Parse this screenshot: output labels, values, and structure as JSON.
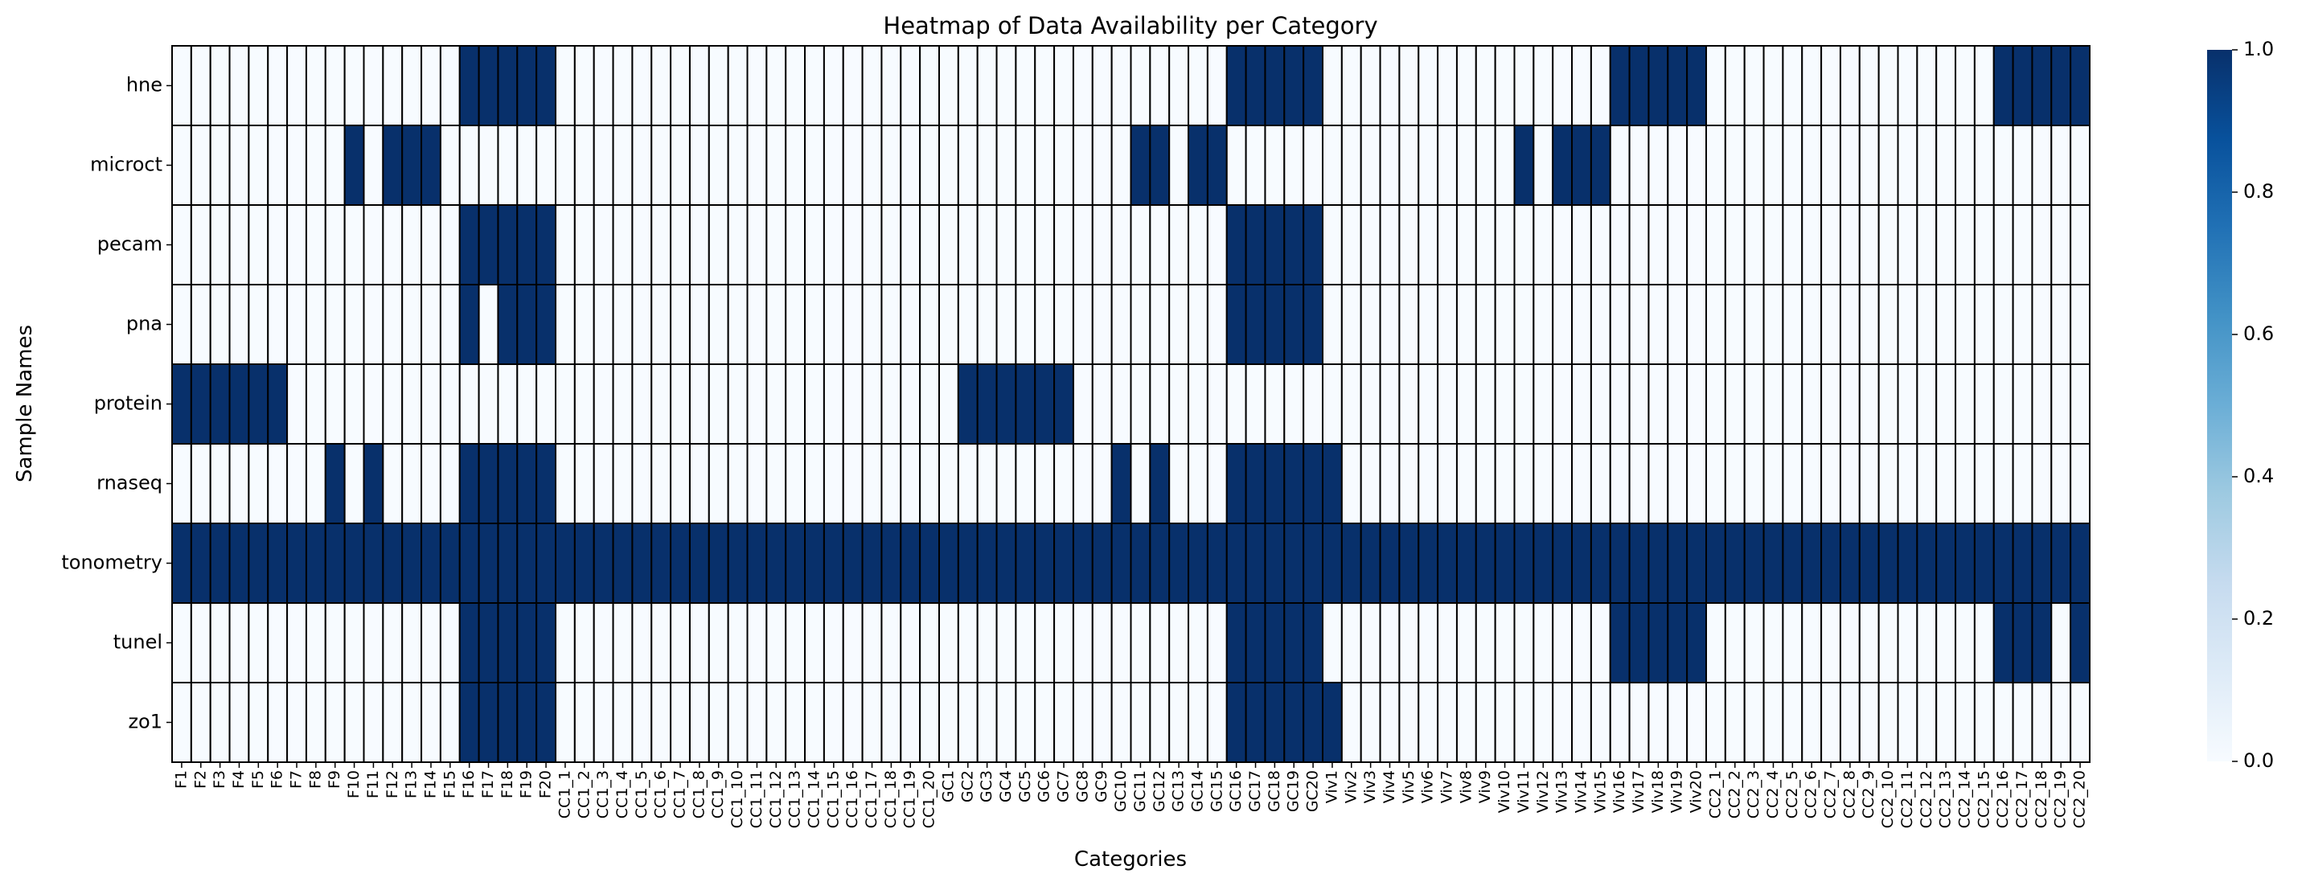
{
  "chart_data": {
    "type": "heatmap",
    "title": "Heatmap of Data Availability per Category",
    "xlabel": "Categories",
    "ylabel": "Sample Names",
    "colormap": "Blues",
    "colorbar_range": [
      0,
      1
    ],
    "colorbar_ticks": [
      "0.0",
      "0.2",
      "0.4",
      "0.6",
      "0.8",
      "1.0"
    ],
    "colors": {
      "low": "#f7fbff",
      "high": "#08306b",
      "grid": "#000000"
    },
    "rows": [
      "hne",
      "microct",
      "pecam",
      "pna",
      "protein",
      "rnaseq",
      "tonometry",
      "tunel",
      "zo1"
    ],
    "columns": [
      "F1",
      "F2",
      "F3",
      "F4",
      "F5",
      "F6",
      "F7",
      "F8",
      "F9",
      "F10",
      "F11",
      "F12",
      "F13",
      "F14",
      "F15",
      "F16",
      "F17",
      "F18",
      "F19",
      "F20",
      "CC1_1",
      "CC1_2",
      "CC1_3",
      "CC1_4",
      "CC1_5",
      "CC1_6",
      "CC1_7",
      "CC1_8",
      "CC1_9",
      "CC1_10",
      "CC1_11",
      "CC1_12",
      "CC1_13",
      "CC1_14",
      "CC1_15",
      "CC1_16",
      "CC1_17",
      "CC1_18",
      "CC1_19",
      "CC1_20",
      "GC1",
      "GC2",
      "GC3",
      "GC4",
      "GC5",
      "GC6",
      "GC7",
      "GC8",
      "GC9",
      "GC10",
      "GC11",
      "GC12",
      "GC13",
      "GC14",
      "GC15",
      "GC16",
      "GC17",
      "GC18",
      "GC19",
      "GC20",
      "Viv1",
      "Viv2",
      "Viv3",
      "Viv4",
      "Viv5",
      "Viv6",
      "Viv7",
      "Viv8",
      "Viv9",
      "Viv10",
      "Viv11",
      "Viv12",
      "Viv13",
      "Viv14",
      "Viv15",
      "Viv16",
      "Viv17",
      "Viv18",
      "Viv19",
      "Viv20",
      "CC2_1",
      "CC2_2",
      "CC2_3",
      "CC2_4",
      "CC2_5",
      "CC2_6",
      "CC2_7",
      "CC2_8",
      "CC2_9",
      "CC2_10",
      "CC2_11",
      "CC2_12",
      "CC2_13",
      "CC2_14",
      "CC2_15",
      "CC2_16",
      "CC2_17",
      "CC2_18",
      "CC2_19",
      "CC2_20"
    ],
    "values": [
      [
        0,
        0,
        0,
        0,
        0,
        0,
        0,
        0,
        0,
        0,
        0,
        0,
        0,
        0,
        0,
        1,
        1,
        1,
        1,
        1,
        0,
        0,
        0,
        0,
        0,
        0,
        0,
        0,
        0,
        0,
        0,
        0,
        0,
        0,
        0,
        0,
        0,
        0,
        0,
        0,
        0,
        0,
        0,
        0,
        0,
        0,
        0,
        0,
        0,
        0,
        0,
        0,
        0,
        0,
        0,
        1,
        1,
        1,
        1,
        1,
        0,
        0,
        0,
        0,
        0,
        0,
        0,
        0,
        0,
        0,
        0,
        0,
        0,
        0,
        0,
        1,
        1,
        1,
        1,
        1,
        0,
        0,
        0,
        0,
        0,
        0,
        0,
        0,
        0,
        0,
        0,
        0,
        0,
        0,
        0,
        1,
        1,
        1,
        1,
        1
      ],
      [
        0,
        0,
        0,
        0,
        0,
        0,
        0,
        0,
        0,
        1,
        0,
        1,
        1,
        1,
        0,
        0,
        0,
        0,
        0,
        0,
        0,
        0,
        0,
        0,
        0,
        0,
        0,
        0,
        0,
        0,
        0,
        0,
        0,
        0,
        0,
        0,
        0,
        0,
        0,
        0,
        0,
        0,
        0,
        0,
        0,
        0,
        0,
        0,
        0,
        0,
        1,
        1,
        0,
        1,
        1,
        0,
        0,
        0,
        0,
        0,
        0,
        0,
        0,
        0,
        0,
        0,
        0,
        0,
        0,
        0,
        1,
        0,
        1,
        1,
        1,
        0,
        0,
        0,
        0,
        0,
        0,
        0,
        0,
        0,
        0,
        0,
        0,
        0,
        0,
        0,
        0,
        0,
        0,
        0,
        0,
        0,
        0,
        0,
        0,
        0
      ],
      [
        0,
        0,
        0,
        0,
        0,
        0,
        0,
        0,
        0,
        0,
        0,
        0,
        0,
        0,
        0,
        1,
        1,
        1,
        1,
        1,
        0,
        0,
        0,
        0,
        0,
        0,
        0,
        0,
        0,
        0,
        0,
        0,
        0,
        0,
        0,
        0,
        0,
        0,
        0,
        0,
        0,
        0,
        0,
        0,
        0,
        0,
        0,
        0,
        0,
        0,
        0,
        0,
        0,
        0,
        0,
        1,
        1,
        1,
        1,
        1,
        0,
        0,
        0,
        0,
        0,
        0,
        0,
        0,
        0,
        0,
        0,
        0,
        0,
        0,
        0,
        0,
        0,
        0,
        0,
        0,
        0,
        0,
        0,
        0,
        0,
        0,
        0,
        0,
        0,
        0,
        0,
        0,
        0,
        0,
        0,
        0,
        0,
        0,
        0,
        0
      ],
      [
        0,
        0,
        0,
        0,
        0,
        0,
        0,
        0,
        0,
        0,
        0,
        0,
        0,
        0,
        0,
        1,
        0,
        1,
        1,
        1,
        0,
        0,
        0,
        0,
        0,
        0,
        0,
        0,
        0,
        0,
        0,
        0,
        0,
        0,
        0,
        0,
        0,
        0,
        0,
        0,
        0,
        0,
        0,
        0,
        0,
        0,
        0,
        0,
        0,
        0,
        0,
        0,
        0,
        0,
        0,
        1,
        1,
        1,
        1,
        1,
        0,
        0,
        0,
        0,
        0,
        0,
        0,
        0,
        0,
        0,
        0,
        0,
        0,
        0,
        0,
        0,
        0,
        0,
        0,
        0,
        0,
        0,
        0,
        0,
        0,
        0,
        0,
        0,
        0,
        0,
        0,
        0,
        0,
        0,
        0,
        0,
        0,
        0,
        0,
        0
      ],
      [
        1,
        1,
        1,
        1,
        1,
        1,
        0,
        0,
        0,
        0,
        0,
        0,
        0,
        0,
        0,
        0,
        0,
        0,
        0,
        0,
        0,
        0,
        0,
        0,
        0,
        0,
        0,
        0,
        0,
        0,
        0,
        0,
        0,
        0,
        0,
        0,
        0,
        0,
        0,
        0,
        0,
        1,
        1,
        1,
        1,
        1,
        1,
        0,
        0,
        0,
        0,
        0,
        0,
        0,
        0,
        0,
        0,
        0,
        0,
        0,
        0,
        0,
        0,
        0,
        0,
        0,
        0,
        0,
        0,
        0,
        0,
        0,
        0,
        0,
        0,
        0,
        0,
        0,
        0,
        0,
        0,
        0,
        0,
        0,
        0,
        0,
        0,
        0,
        0,
        0,
        0,
        0,
        0,
        0,
        0,
        0,
        0,
        0,
        0,
        0
      ],
      [
        0,
        0,
        0,
        0,
        0,
        0,
        0,
        0,
        1,
        0,
        1,
        0,
        0,
        0,
        0,
        1,
        1,
        1,
        1,
        1,
        0,
        0,
        0,
        0,
        0,
        0,
        0,
        0,
        0,
        0,
        0,
        0,
        0,
        0,
        0,
        0,
        0,
        0,
        0,
        0,
        0,
        0,
        0,
        0,
        0,
        0,
        0,
        0,
        0,
        1,
        0,
        1,
        0,
        0,
        0,
        1,
        1,
        1,
        1,
        1,
        1,
        0,
        0,
        0,
        0,
        0,
        0,
        0,
        0,
        0,
        0,
        0,
        0,
        0,
        0,
        0,
        0,
        0,
        0,
        0,
        0,
        0,
        0,
        0,
        0,
        0,
        0,
        0,
        0,
        0,
        0,
        0,
        0,
        0,
        0,
        0,
        0,
        0,
        0,
        0
      ],
      [
        1,
        1,
        1,
        1,
        1,
        1,
        1,
        1,
        1,
        1,
        1,
        1,
        1,
        1,
        1,
        1,
        1,
        1,
        1,
        1,
        1,
        1,
        1,
        1,
        1,
        1,
        1,
        1,
        1,
        1,
        1,
        1,
        1,
        1,
        1,
        1,
        1,
        1,
        1,
        1,
        1,
        1,
        1,
        1,
        1,
        1,
        1,
        1,
        1,
        1,
        1,
        1,
        1,
        1,
        1,
        1,
        1,
        1,
        1,
        1,
        1,
        1,
        1,
        1,
        1,
        1,
        1,
        1,
        1,
        1,
        1,
        1,
        1,
        1,
        1,
        1,
        1,
        1,
        1,
        1,
        1,
        1,
        1,
        1,
        1,
        1,
        1,
        1,
        1,
        1,
        1,
        1,
        1,
        1,
        1,
        1,
        1,
        1,
        1,
        1
      ],
      [
        0,
        0,
        0,
        0,
        0,
        0,
        0,
        0,
        0,
        0,
        0,
        0,
        0,
        0,
        0,
        1,
        1,
        1,
        1,
        1,
        0,
        0,
        0,
        0,
        0,
        0,
        0,
        0,
        0,
        0,
        0,
        0,
        0,
        0,
        0,
        0,
        0,
        0,
        0,
        0,
        0,
        0,
        0,
        0,
        0,
        0,
        0,
        0,
        0,
        0,
        0,
        0,
        0,
        0,
        0,
        1,
        1,
        1,
        1,
        1,
        0,
        0,
        0,
        0,
        0,
        0,
        0,
        0,
        0,
        0,
        0,
        0,
        0,
        0,
        0,
        1,
        1,
        1,
        1,
        1,
        0,
        0,
        0,
        0,
        0,
        0,
        0,
        0,
        0,
        0,
        0,
        0,
        0,
        0,
        0,
        1,
        1,
        1,
        0,
        1
      ],
      [
        0,
        0,
        0,
        0,
        0,
        0,
        0,
        0,
        0,
        0,
        0,
        0,
        0,
        0,
        0,
        1,
        1,
        1,
        1,
        1,
        0,
        0,
        0,
        0,
        0,
        0,
        0,
        0,
        0,
        0,
        0,
        0,
        0,
        0,
        0,
        0,
        0,
        0,
        0,
        0,
        0,
        0,
        0,
        0,
        0,
        0,
        0,
        0,
        0,
        0,
        0,
        0,
        0,
        0,
        0,
        1,
        1,
        1,
        1,
        1,
        1,
        0,
        0,
        0,
        0,
        0,
        0,
        0,
        0,
        0,
        0,
        0,
        0,
        0,
        0,
        0,
        0,
        0,
        0,
        0,
        0,
        0,
        0,
        0,
        0,
        0,
        0,
        0,
        0,
        0,
        0,
        0,
        0,
        0,
        0,
        0,
        0,
        0,
        0,
        0
      ]
    ]
  }
}
